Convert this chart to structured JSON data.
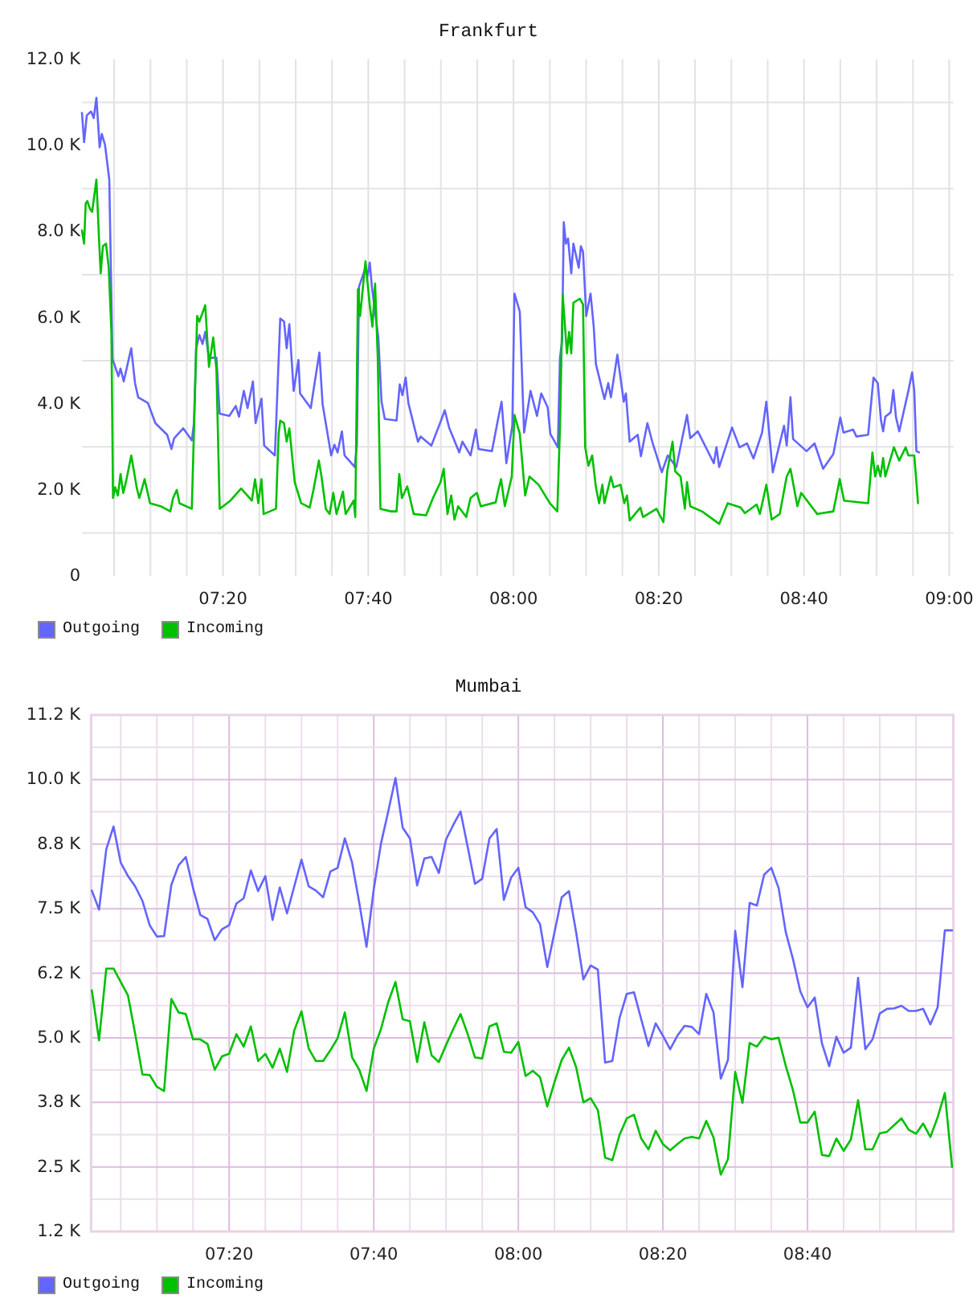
{
  "chart_data": [
    {
      "type": "line",
      "title": "Frankfurt",
      "xlim": [
        7.0095,
        9.0095
      ],
      "ylim": [
        0,
        12000
      ],
      "xticks": [
        {
          "value": 7.0833,
          "label": null
        },
        {
          "value": 7.1667,
          "label": null
        },
        {
          "value": 7.25,
          "label": null
        },
        {
          "value": 7.3333,
          "label": "07:20"
        },
        {
          "value": 7.4167,
          "label": null
        },
        {
          "value": 7.5,
          "label": null
        },
        {
          "value": 7.5833,
          "label": null
        },
        {
          "value": 7.6667,
          "label": "07:40"
        },
        {
          "value": 7.75,
          "label": null
        },
        {
          "value": 7.8333,
          "label": null
        },
        {
          "value": 7.9167,
          "label": null
        },
        {
          "value": 8,
          "label": "08:00"
        },
        {
          "value": 8.0833,
          "label": null
        },
        {
          "value": 8.1667,
          "label": null
        },
        {
          "value": 8.25,
          "label": null
        },
        {
          "value": 8.3333,
          "label": "08:20"
        },
        {
          "value": 8.4167,
          "label": null
        },
        {
          "value": 8.5,
          "label": null
        },
        {
          "value": 8.5833,
          "label": null
        },
        {
          "value": 8.6667,
          "label": "08:40"
        },
        {
          "value": 8.75,
          "label": null
        },
        {
          "value": 8.8333,
          "label": null
        },
        {
          "value": 8.9167,
          "label": null
        },
        {
          "value": 9,
          "label": "09:00"
        }
      ],
      "yticks": [
        0,
        {
          "value": 1000,
          "label": null
        },
        {
          "value": 2000,
          "label": "2.0 K"
        },
        {
          "value": 3000,
          "label": null
        },
        {
          "value": 4000,
          "label": "4.0 K"
        },
        {
          "value": 5000,
          "label": null
        },
        {
          "value": 6000,
          "label": "6.0 K"
        },
        {
          "value": 7000,
          "label": null
        },
        {
          "value": 8000,
          "label": "8.0 K"
        },
        {
          "value": 9000,
          "label": null
        },
        {
          "value": 10000,
          "label": "10.0 K"
        },
        {
          "value": 11000,
          "label": null
        },
        {
          "value": 12000,
          "label": "12.0 K"
        }
      ],
      "grid": true,
      "legend": "bottom left",
      "series": [
        {
          "name": "Outgoing",
          "color": "#6464ff",
          "x": [
            7.0095,
            7.0144,
            7.0206,
            7.0304,
            7.0366,
            7.0427,
            7.0501,
            7.055,
            7.0624,
            7.0722,
            7.0796,
            7.0931,
            7.098,
            7.1054,
            7.1226,
            7.1313,
            7.1386,
            7.1608,
            7.178,
            7.2051,
            7.2149,
            7.2211,
            7.242,
            7.2617,
            7.2666,
            7.2715,
            7.2789,
            7.2863,
            7.2924,
            7.301,
            7.3182,
            7.3256,
            7.3477,
            7.3625,
            7.3699,
            7.381,
            7.3896,
            7.4019,
            7.408,
            7.4215,
            7.4277,
            7.4523,
            7.4646,
            7.4733,
            7.4794,
            7.4855,
            7.4954,
            7.5064,
            7.5101,
            7.5347,
            7.5445,
            7.5544,
            7.5618,
            7.5815,
            7.5888,
            7.5962,
            7.6061,
            7.6122,
            7.6356,
            7.6405,
            7.6454,
            7.6602,
            7.6651,
            7.67,
            7.6749,
            7.6897,
            7.6971,
            7.7045,
            7.7315,
            7.7389,
            7.745,
            7.7524,
            7.7586,
            7.7807,
            7.7869,
            7.8115,
            7.8324,
            7.8422,
            7.8521,
            7.8754,
            7.8828,
            7.9013,
            7.9136,
            7.9197,
            7.9505,
            7.9652,
            7.9726,
            7.9836,
            7.9972,
            8.0021,
            8.0144,
            8.0242,
            8.039,
            8.0538,
            8.0636,
            8.0784,
            8.0845,
            8.1017,
            8.1066,
            8.1116,
            8.1153,
            8.1202,
            8.1251,
            8.1325,
            8.1374,
            8.1497,
            8.1546,
            8.1595,
            8.1669,
            8.1768,
            8.1841,
            8.1891,
            8.2087,
            8.2174,
            8.2235,
            8.2383,
            8.253,
            8.2579,
            8.2665,
            8.285,
            8.2924,
            8.3072,
            8.3195,
            8.3404,
            8.3539,
            8.3736,
            8.3982,
            8.4056,
            8.4228,
            8.4474,
            8.4597,
            8.4658,
            8.472,
            8.5015,
            8.5187,
            8.5359,
            8.5507,
            8.5704,
            8.5802,
            8.595,
            8.6208,
            8.627,
            8.6356,
            8.6417,
            8.6725,
            8.6909,
            8.7106,
            8.734,
            8.75,
            8.7573,
            8.7795,
            8.7869,
            8.8139,
            8.8262,
            8.836,
            8.8434,
            8.8483,
            8.8533,
            8.8656,
            8.8717,
            8.8779,
            8.8853,
            8.9062,
            8.9148,
            8.9197,
            8.9246,
            8.9308
          ],
          "values": [
            10760,
            10080,
            10700,
            10790,
            10640,
            11110,
            9960,
            10270,
            10020,
            9210,
            5040,
            4640,
            4820,
            4520,
            5290,
            4480,
            4150,
            4020,
            3550,
            3280,
            2950,
            3200,
            3430,
            3150,
            3550,
            5290,
            5600,
            5390,
            5670,
            5070,
            5070,
            3770,
            3720,
            3950,
            3700,
            4300,
            3900,
            4520,
            3550,
            4120,
            3030,
            2800,
            5980,
            5910,
            5290,
            5850,
            4300,
            5020,
            4240,
            3900,
            4550,
            5190,
            3990,
            2800,
            3050,
            2870,
            3360,
            2800,
            2530,
            3050,
            6720,
            7160,
            6970,
            7280,
            6720,
            5540,
            4050,
            3650,
            3610,
            4450,
            4200,
            4610,
            4020,
            3120,
            3240,
            3030,
            3580,
            3850,
            3450,
            2870,
            3120,
            2800,
            3400,
            2950,
            2900,
            3680,
            4050,
            2620,
            3490,
            6560,
            6140,
            3330,
            4300,
            3720,
            4240,
            3920,
            3300,
            2990,
            5070,
            5480,
            8220,
            7720,
            7840,
            7030,
            7720,
            7160,
            7660,
            7530,
            6040,
            6560,
            5790,
            4920,
            4110,
            4480,
            4150,
            5140,
            4050,
            4240,
            3120,
            3280,
            2780,
            3550,
            3080,
            2410,
            2800,
            2530,
            3740,
            3200,
            3360,
            2870,
            2620,
            2990,
            2530,
            3450,
            2990,
            3080,
            2730,
            3330,
            4050,
            2410,
            3490,
            3030,
            4150,
            3180,
            2900,
            3080,
            2490,
            2830,
            3680,
            3330,
            3400,
            3240,
            3280,
            4610,
            4480,
            3610,
            3360,
            3700,
            3800,
            4320,
            3680,
            3360,
            4300,
            4730,
            4300,
            2900,
            2870
          ]
        },
        {
          "name": "Incoming",
          "color": "#00c000",
          "x": [
            7.0095,
            7.0144,
            7.0181,
            7.0218,
            7.0279,
            7.0329,
            7.0427,
            7.0489,
            7.0525,
            7.0575,
            7.0648,
            7.071,
            7.0771,
            7.0808,
            7.0858,
            7.0919,
            7.0981,
            7.1042,
            7.1104,
            7.1227,
            7.135,
            7.1411,
            7.1534,
            7.1657,
            7.1903,
            7.2124,
            7.2186,
            7.2272,
            7.2334,
            7.2616,
            7.2739,
            7.2789,
            7.2924,
            7.301,
            7.3108,
            7.3182,
            7.3256,
            7.3502,
            7.3748,
            7.3994,
            7.4068,
            7.4142,
            7.4215,
            7.4265,
            7.4548,
            7.4609,
            7.4646,
            7.4732,
            7.4794,
            7.4855,
            7.4978,
            7.5126,
            7.5322,
            7.5409,
            7.5532,
            7.5593,
            7.5691,
            7.5778,
            7.5864,
            7.5937,
            7.6085,
            7.6147,
            7.6331,
            7.6368,
            7.6429,
            7.6479,
            7.6602,
            7.67,
            7.6762,
            7.6823,
            7.6885,
            7.6946,
            7.7192,
            7.7315,
            7.7377,
            7.7438,
            7.7561,
            7.7709,
            7.7992,
            7.8151,
            7.8324,
            7.8398,
            7.8484,
            7.857,
            7.8644,
            7.873,
            7.8914,
            7.9013,
            7.916,
            7.9246,
            7.9591,
            7.9652,
            7.9714,
            7.98,
            7.996,
            8.0021,
            8.0144,
            8.0267,
            8.0365,
            8.0575,
            8.0833,
            8.1005,
            8.1067,
            8.1128,
            8.1226,
            8.1276,
            8.1325,
            8.1374,
            8.1522,
            8.1595,
            8.1645,
            8.1718,
            8.1805,
            8.1891,
            8.1964,
            8.2038,
            8.2087,
            8.2235,
            8.2297,
            8.2456,
            8.2543,
            8.2604,
            8.2666,
            8.2912,
            8.2973,
            8.3281,
            8.344,
            8.3527,
            8.365,
            8.3711,
            8.3834,
            8.3932,
            8.3982,
            8.4055,
            8.4326,
            8.472,
            8.4916,
            8.5212,
            8.531,
            8.5581,
            8.5655,
            8.5802,
            8.5925,
            8.611,
            8.6269,
            8.6356,
            8.6515,
            8.6602,
            8.6971,
            8.734,
            8.7487,
            8.7586,
            8.8139,
            8.8237,
            8.8299,
            8.836,
            8.8422,
            8.8483,
            8.8533,
            8.8729,
            8.8852,
            8.9,
            8.9062,
            8.9197,
            8.9246,
            8.9283
          ],
          "values": [
            8030,
            7720,
            8650,
            8710,
            8530,
            8460,
            9210,
            7780,
            7030,
            7660,
            7720,
            7160,
            5670,
            1810,
            2060,
            1870,
            2370,
            1930,
            2180,
            2800,
            2060,
            1810,
            2250,
            1690,
            1620,
            1500,
            1810,
            2000,
            1690,
            1560,
            6040,
            5910,
            6290,
            4860,
            5540,
            4790,
            1560,
            1750,
            2030,
            1750,
            2250,
            1690,
            2250,
            1440,
            1560,
            3300,
            3610,
            3550,
            3120,
            3430,
            2180,
            1690,
            1590,
            2000,
            2680,
            2310,
            1560,
            1440,
            1930,
            1440,
            1960,
            1440,
            1750,
            1370,
            6660,
            6040,
            7310,
            6290,
            5790,
            6790,
            5040,
            1560,
            1500,
            1500,
            2370,
            1810,
            2080,
            1440,
            1410,
            1810,
            2180,
            2490,
            1440,
            1870,
            1310,
            1620,
            1370,
            1810,
            1930,
            1620,
            1710,
            2000,
            2250,
            1620,
            2310,
            3740,
            3300,
            1870,
            2310,
            2120,
            1690,
            1500,
            3490,
            6540,
            5170,
            5670,
            5170,
            6350,
            6440,
            6310,
            2990,
            2560,
            2800,
            2060,
            1690,
            2120,
            1690,
            2310,
            2060,
            2120,
            1690,
            1870,
            1290,
            1590,
            1370,
            1560,
            1250,
            2430,
            3120,
            2430,
            2310,
            1560,
            2180,
            1620,
            1500,
            1210,
            1690,
            1590,
            1460,
            1660,
            1440,
            2120,
            1310,
            1440,
            2310,
            2490,
            1620,
            1930,
            1440,
            1500,
            2250,
            1750,
            1690,
            2870,
            2310,
            2560,
            2310,
            2740,
            2310,
            2990,
            2680,
            2990,
            2800,
            2800,
            2180,
            1690
          ]
        }
      ]
    },
    {
      "type": "line",
      "title": "Mumbai",
      "xlim": [
        7.015,
        9.003
      ],
      "ylim": [
        1250,
        11250
      ],
      "xticks": [
        {
          "value": 7.0833,
          "label": null
        },
        {
          "value": 7.1667,
          "label": null
        },
        {
          "value": 7.25,
          "label": null
        },
        {
          "value": 7.3333,
          "label": "07:20"
        },
        {
          "value": 7.4167,
          "label": null
        },
        {
          "value": 7.5,
          "label": null
        },
        {
          "value": 7.5833,
          "label": null
        },
        {
          "value": 7.6667,
          "label": "07:40"
        },
        {
          "value": 7.75,
          "label": null
        },
        {
          "value": 7.8333,
          "label": null
        },
        {
          "value": 7.9167,
          "label": null
        },
        {
          "value": 8,
          "label": "08:00"
        },
        {
          "value": 8.0833,
          "label": null
        },
        {
          "value": 8.1667,
          "label": null
        },
        {
          "value": 8.25,
          "label": null
        },
        {
          "value": 8.3333,
          "label": "08:20"
        },
        {
          "value": 8.4167,
          "label": null
        },
        {
          "value": 8.5,
          "label": null
        },
        {
          "value": 8.5833,
          "label": null
        },
        {
          "value": 8.6667,
          "label": "08:40"
        },
        {
          "value": 8.75,
          "label": null
        },
        {
          "value": 8.8333,
          "label": null
        },
        {
          "value": 8.9167,
          "label": null
        }
      ],
      "yticks": [
        {
          "value": 1250,
          "label": "1.2 K"
        },
        {
          "value": 1875,
          "label": null
        },
        {
          "value": 2500,
          "label": "2.5 K"
        },
        {
          "value": 3125,
          "label": null
        },
        {
          "value": 3750,
          "label": "3.8 K"
        },
        {
          "value": 4375,
          "label": null
        },
        {
          "value": 5000,
          "label": "5.0 K"
        },
        {
          "value": 5625,
          "label": null
        },
        {
          "value": 6250,
          "label": "6.2 K"
        },
        {
          "value": 6875,
          "label": null
        },
        {
          "value": 7500,
          "label": "7.5 K"
        },
        {
          "value": 8125,
          "label": null
        },
        {
          "value": 8750,
          "label": "8.8 K"
        },
        {
          "value": 9375,
          "label": null
        },
        {
          "value": 10000,
          "label": "10.0 K"
        },
        {
          "value": 10625,
          "label": null
        },
        {
          "value": 11250,
          "label": "11.2 K"
        }
      ],
      "grid": true,
      "legend": "bottom left",
      "x": [
        7.0167,
        7.0333,
        7.05,
        7.0667,
        7.0833,
        7.1,
        7.1167,
        7.1333,
        7.15,
        7.1667,
        7.1833,
        7.2,
        7.2167,
        7.2333,
        7.25,
        7.2667,
        7.2833,
        7.3,
        7.3167,
        7.3333,
        7.35,
        7.3667,
        7.3833,
        7.4,
        7.4167,
        7.4333,
        7.45,
        7.4667,
        7.4833,
        7.5,
        7.5167,
        7.5333,
        7.55,
        7.5667,
        7.5833,
        7.6,
        7.6167,
        7.6333,
        7.65,
        7.6667,
        7.6833,
        7.7,
        7.7167,
        7.7333,
        7.75,
        7.7667,
        7.7833,
        7.8,
        7.8167,
        7.8333,
        7.85,
        7.8667,
        7.8833,
        7.9,
        7.9167,
        7.9333,
        7.95,
        7.9667,
        7.9833,
        8,
        8.0167,
        8.0333,
        8.05,
        8.0667,
        8.0833,
        8.1,
        8.1167,
        8.1333,
        8.15,
        8.1667,
        8.1833,
        8.2,
        8.2167,
        8.2333,
        8.25,
        8.2667,
        8.2833,
        8.3,
        8.3167,
        8.3333,
        8.35,
        8.3667,
        8.3833,
        8.4,
        8.4167,
        8.4333,
        8.45,
        8.4667,
        8.4833,
        8.5,
        8.5167,
        8.5333,
        8.55,
        8.5667,
        8.5833,
        8.6,
        8.6167,
        8.6333,
        8.65,
        8.6667,
        8.6833,
        8.7,
        8.7167,
        8.7333,
        8.75,
        8.7667,
        8.7833,
        8.8,
        8.8167,
        8.8333,
        8.85,
        8.8667,
        8.8833,
        8.9,
        8.9167,
        8.9333,
        8.95,
        8.9667,
        8.9833,
        9
      ],
      "series": [
        {
          "name": "Outgoing",
          "color": "#6464ff",
          "values": [
            7850,
            7480,
            8650,
            9090,
            8390,
            8130,
            7930,
            7650,
            7180,
            6960,
            6970,
            7960,
            8340,
            8500,
            7900,
            7380,
            7300,
            6890,
            7100,
            7180,
            7600,
            7700,
            8240,
            7840,
            8130,
            7280,
            7910,
            7410,
            7930,
            8450,
            7930,
            7850,
            7720,
            8220,
            8290,
            8860,
            8390,
            7610,
            6760,
            7880,
            8760,
            9380,
            10030,
            9070,
            8860,
            7950,
            8470,
            8500,
            8190,
            8840,
            9120,
            9380,
            8690,
            7980,
            8080,
            8860,
            9040,
            7670,
            8100,
            8290,
            7530,
            7430,
            7200,
            6370,
            7040,
            7720,
            7840,
            7040,
            6130,
            6400,
            6320,
            4520,
            4550,
            5380,
            5850,
            5880,
            5360,
            4840,
            5280,
            5040,
            4780,
            5040,
            5230,
            5210,
            5070,
            5850,
            5490,
            4210,
            4570,
            7070,
            5980,
            7610,
            7560,
            8160,
            8290,
            7900,
            7040,
            6520,
            5900,
            5590,
            5780,
            4890,
            4450,
            5020,
            4710,
            4810,
            6160,
            4780,
            4970,
            5470,
            5560,
            5570,
            5620,
            5520,
            5520,
            5560,
            5260,
            5590,
            7080,
            7080
          ]
        },
        {
          "name": "Incoming",
          "color": "#00c000",
          "values": [
            5920,
            4950,
            6340,
            6340,
            6080,
            5820,
            5070,
            4290,
            4280,
            4050,
            3970,
            5750,
            5490,
            5460,
            4970,
            4970,
            4880,
            4380,
            4640,
            4690,
            5070,
            4830,
            5220,
            4550,
            4690,
            4420,
            4790,
            4340,
            5140,
            5510,
            4790,
            4550,
            4550,
            4760,
            4990,
            5490,
            4620,
            4380,
            3970,
            4790,
            5170,
            5690,
            6080,
            5360,
            5320,
            4530,
            5300,
            4660,
            4530,
            4860,
            5170,
            5460,
            5070,
            4620,
            4600,
            5220,
            5280,
            4730,
            4710,
            4920,
            4260,
            4360,
            4240,
            3670,
            4140,
            4570,
            4810,
            4430,
            3750,
            3830,
            3600,
            2680,
            2630,
            3120,
            3440,
            3510,
            3050,
            2840,
            3200,
            2940,
            2820,
            2940,
            3050,
            3080,
            3050,
            3390,
            3070,
            2350,
            2650,
            4340,
            3740,
            4900,
            4830,
            5020,
            4970,
            5000,
            4450,
            3980,
            3360,
            3360,
            3570,
            2730,
            2710,
            3050,
            2810,
            3030,
            3790,
            2840,
            2840,
            3150,
            3180,
            3310,
            3440,
            3220,
            3140,
            3340,
            3080,
            3460,
            3930,
            2500
          ]
        }
      ]
    }
  ]
}
